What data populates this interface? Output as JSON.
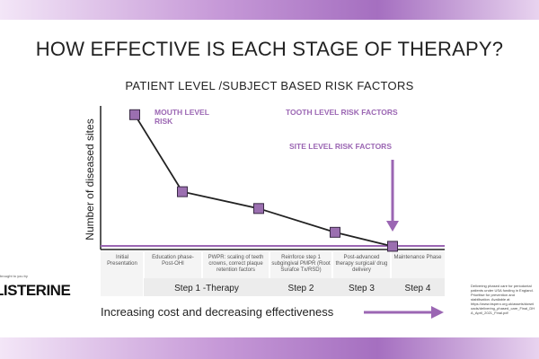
{
  "chart_data": {
    "type": "line",
    "title": "HOW EFFECTIVE IS EACH STAGE OF THERAPY?",
    "subtitle": "PATIENT LEVEL /SUBJECT BASED RISK FACTORS",
    "y_label": "Number of diseased sites",
    "categories": [
      "Initial Presentation",
      "Education phase- Post-OHI",
      "PWPR: scaling of teeth crowns, correct plaque retention factors",
      "Reinforce step 1 subgingival PMPR (Root Surafce Tx/RSD)",
      "Post-advanced therapy surgical/ drug delivery",
      "Maintenance Phase"
    ],
    "values": [
      95,
      40,
      28,
      11,
      1,
      null
    ],
    "ylim": [
      0,
      100
    ],
    "line_color": "#222222",
    "marker_color": "#9b6fb0",
    "annotations": [
      "MOUTH LEVEL RISK",
      "TOOTH LEVEL RISK FACTORS",
      "SITE LEVEL RISK FACTORS"
    ],
    "steps": [
      "Step 1 -Therapy",
      "Step 2",
      "Step 3",
      "Step 4"
    ],
    "cost_label": "Increasing cost and decreasing effectiveness",
    "brand": "LISTERINE",
    "brand_note": "brought to you by",
    "footnote": "Delivering phased care for periodontal patients under USA funding in England. Prioritise for prevention and stabilisation. Available at https://www.bspero.org.uk/assets/downloads/delivering_phased_care_Final_DHA_April_2021_Final.pdf"
  }
}
